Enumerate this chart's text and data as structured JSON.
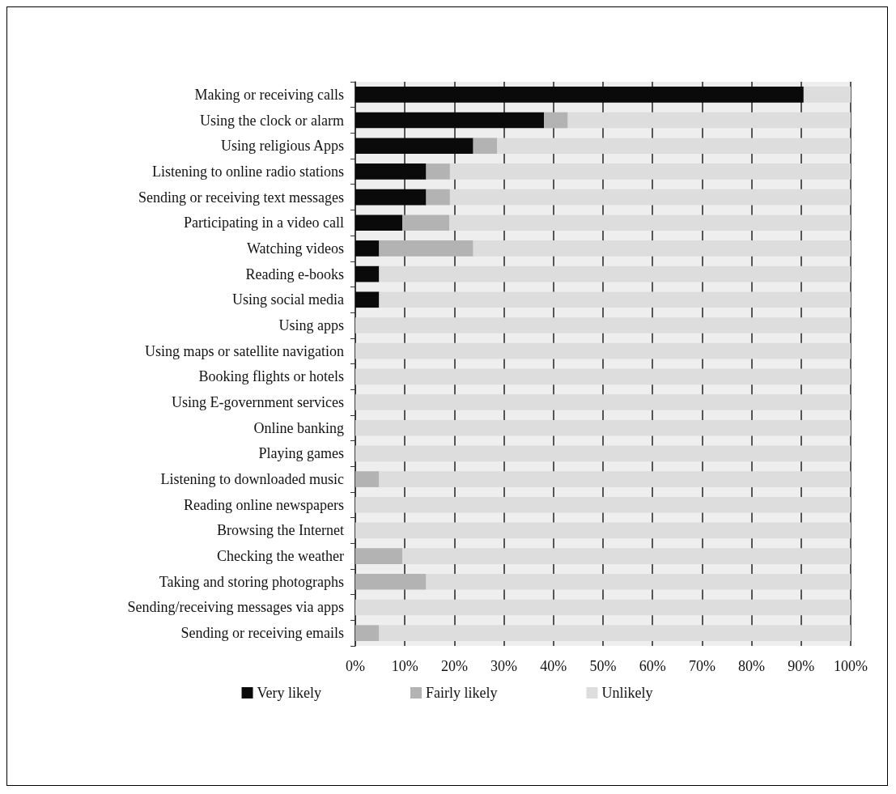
{
  "chart_data": {
    "type": "bar",
    "orientation": "horizontal",
    "stacked": true,
    "categories": [
      "Making or receiving calls",
      "Using the clock or alarm",
      "Using religious Apps",
      "Listening to online radio stations",
      "Sending or receiving text messages",
      "Participating in a video call",
      "Watching videos",
      "Reading e-books",
      "Using social media",
      "Using apps",
      "Using maps or satellite navigation",
      "Booking flights or hotels",
      "Using E-government services",
      "Online banking",
      "Playing games",
      "Listening to downloaded music",
      "Reading online newspapers",
      "Browsing the Internet",
      "Checking the weather",
      "Taking and storing photographs",
      "Sending/receiving messages via apps",
      "Sending or receiving emails"
    ],
    "series": [
      {
        "name": "Very likely",
        "color": "#0a0a0a",
        "values": [
          90.5,
          38.1,
          23.8,
          14.3,
          14.3,
          9.5,
          4.8,
          4.8,
          4.8,
          0,
          0,
          0,
          0,
          0,
          0,
          0,
          0,
          0,
          0,
          0,
          0,
          0
        ]
      },
      {
        "name": "Fairly likely",
        "color": "#b3b3b3",
        "values": [
          0,
          4.8,
          4.8,
          4.8,
          4.8,
          9.5,
          19.0,
          0,
          0,
          0,
          0,
          0,
          0,
          0,
          0,
          4.8,
          0,
          0,
          9.5,
          14.3,
          0,
          4.8
        ]
      },
      {
        "name": "Unlikely",
        "color": "#dddddd",
        "values": [
          9.5,
          57.1,
          71.4,
          80.9,
          80.9,
          81.0,
          76.2,
          95.2,
          95.2,
          100,
          100,
          100,
          100,
          100,
          100,
          95.2,
          100,
          100,
          90.5,
          85.7,
          100,
          95.2
        ]
      }
    ],
    "xlim": [
      0,
      100
    ],
    "xticks": [
      {
        "value": 0,
        "label": "0%"
      },
      {
        "value": 10,
        "label": "10%"
      },
      {
        "value": 20,
        "label": "20%"
      },
      {
        "value": 30,
        "label": "30%"
      },
      {
        "value": 40,
        "label": "40%"
      },
      {
        "value": 50,
        "label": "50%"
      },
      {
        "value": 60,
        "label": "60%"
      },
      {
        "value": 70,
        "label": "70%"
      },
      {
        "value": 80,
        "label": "80%"
      },
      {
        "value": 90,
        "label": "90%"
      },
      {
        "value": 100,
        "label": "100%"
      }
    ],
    "grid": "x",
    "legend": "bottom"
  }
}
